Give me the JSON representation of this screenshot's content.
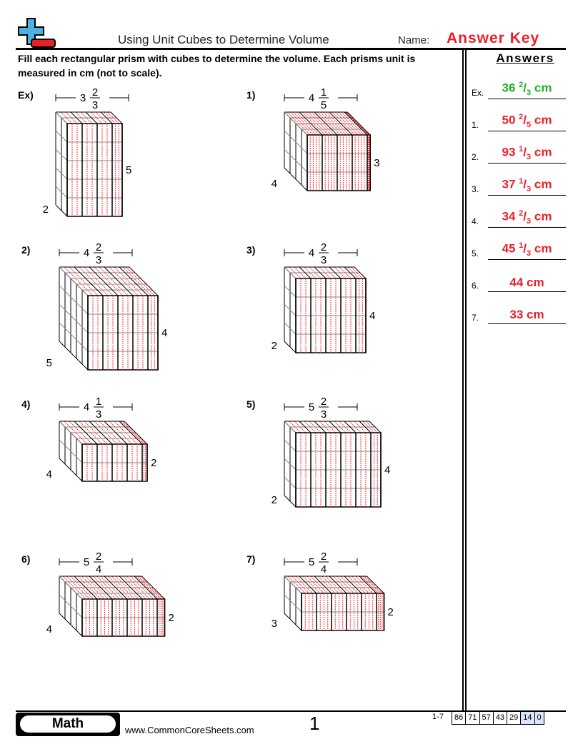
{
  "header": {
    "title": "Using Unit Cubes to Determine Volume",
    "name_label": "Name:",
    "name_value": "Answer Key"
  },
  "instructions": "Fill each rectangular prism with cubes to determine the volume. Each prisms unit is measured in cm (not to scale).",
  "answers": {
    "heading": "Answers",
    "items": [
      {
        "num": "Ex.",
        "whole": "36",
        "numer": "2",
        "denom": "3",
        "unit": "cm",
        "color": "#22b022"
      },
      {
        "num": "1.",
        "whole": "50",
        "numer": "2",
        "denom": "5",
        "unit": "cm",
        "color": "#e8202a"
      },
      {
        "num": "2.",
        "whole": "93",
        "numer": "1",
        "denom": "3",
        "unit": "cm",
        "color": "#e8202a"
      },
      {
        "num": "3.",
        "whole": "37",
        "numer": "1",
        "denom": "3",
        "unit": "cm",
        "color": "#e8202a"
      },
      {
        "num": "4.",
        "whole": "34",
        "numer": "2",
        "denom": "3",
        "unit": "cm",
        "color": "#e8202a"
      },
      {
        "num": "5.",
        "whole": "45",
        "numer": "1",
        "denom": "3",
        "unit": "cm",
        "color": "#e8202a"
      },
      {
        "num": "6.",
        "whole": "44",
        "numer": "",
        "denom": "",
        "unit": "cm",
        "color": "#e8202a"
      },
      {
        "num": "7.",
        "whole": "33",
        "numer": "",
        "denom": "",
        "unit": "cm",
        "color": "#e8202a"
      }
    ]
  },
  "problems": [
    {
      "label": "Ex)",
      "width_whole": 3,
      "width_num": 2,
      "width_den": 3,
      "height": 5,
      "depth": 2
    },
    {
      "label": "1)",
      "width_whole": 4,
      "width_num": 1,
      "width_den": 5,
      "height": 3,
      "depth": 4
    },
    {
      "label": "2)",
      "width_whole": 4,
      "width_num": 2,
      "width_den": 3,
      "height": 4,
      "depth": 5
    },
    {
      "label": "3)",
      "width_whole": 4,
      "width_num": 2,
      "width_den": 3,
      "height": 4,
      "depth": 2
    },
    {
      "label": "4)",
      "width_whole": 4,
      "width_num": 1,
      "width_den": 3,
      "height": 2,
      "depth": 4
    },
    {
      "label": "5)",
      "width_whole": 5,
      "width_num": 2,
      "width_den": 3,
      "height": 4,
      "depth": 2
    },
    {
      "label": "6)",
      "width_whole": 5,
      "width_num": 2,
      "width_den": 4,
      "height": 2,
      "depth": 4
    },
    {
      "label": "7)",
      "width_whole": 5,
      "width_num": 2,
      "width_den": 4,
      "height": 2,
      "depth": 3
    }
  ],
  "footer": {
    "subject": "Math",
    "site": "www.CommonCoreSheets.com",
    "page": "1",
    "score_range": "1-7",
    "scores": [
      "86",
      "71",
      "57",
      "43",
      "29",
      "14",
      "0"
    ]
  },
  "colors": {
    "accent_red": "#e8202a",
    "example_green": "#22b022",
    "logo_blue": "#4ab3e0"
  }
}
